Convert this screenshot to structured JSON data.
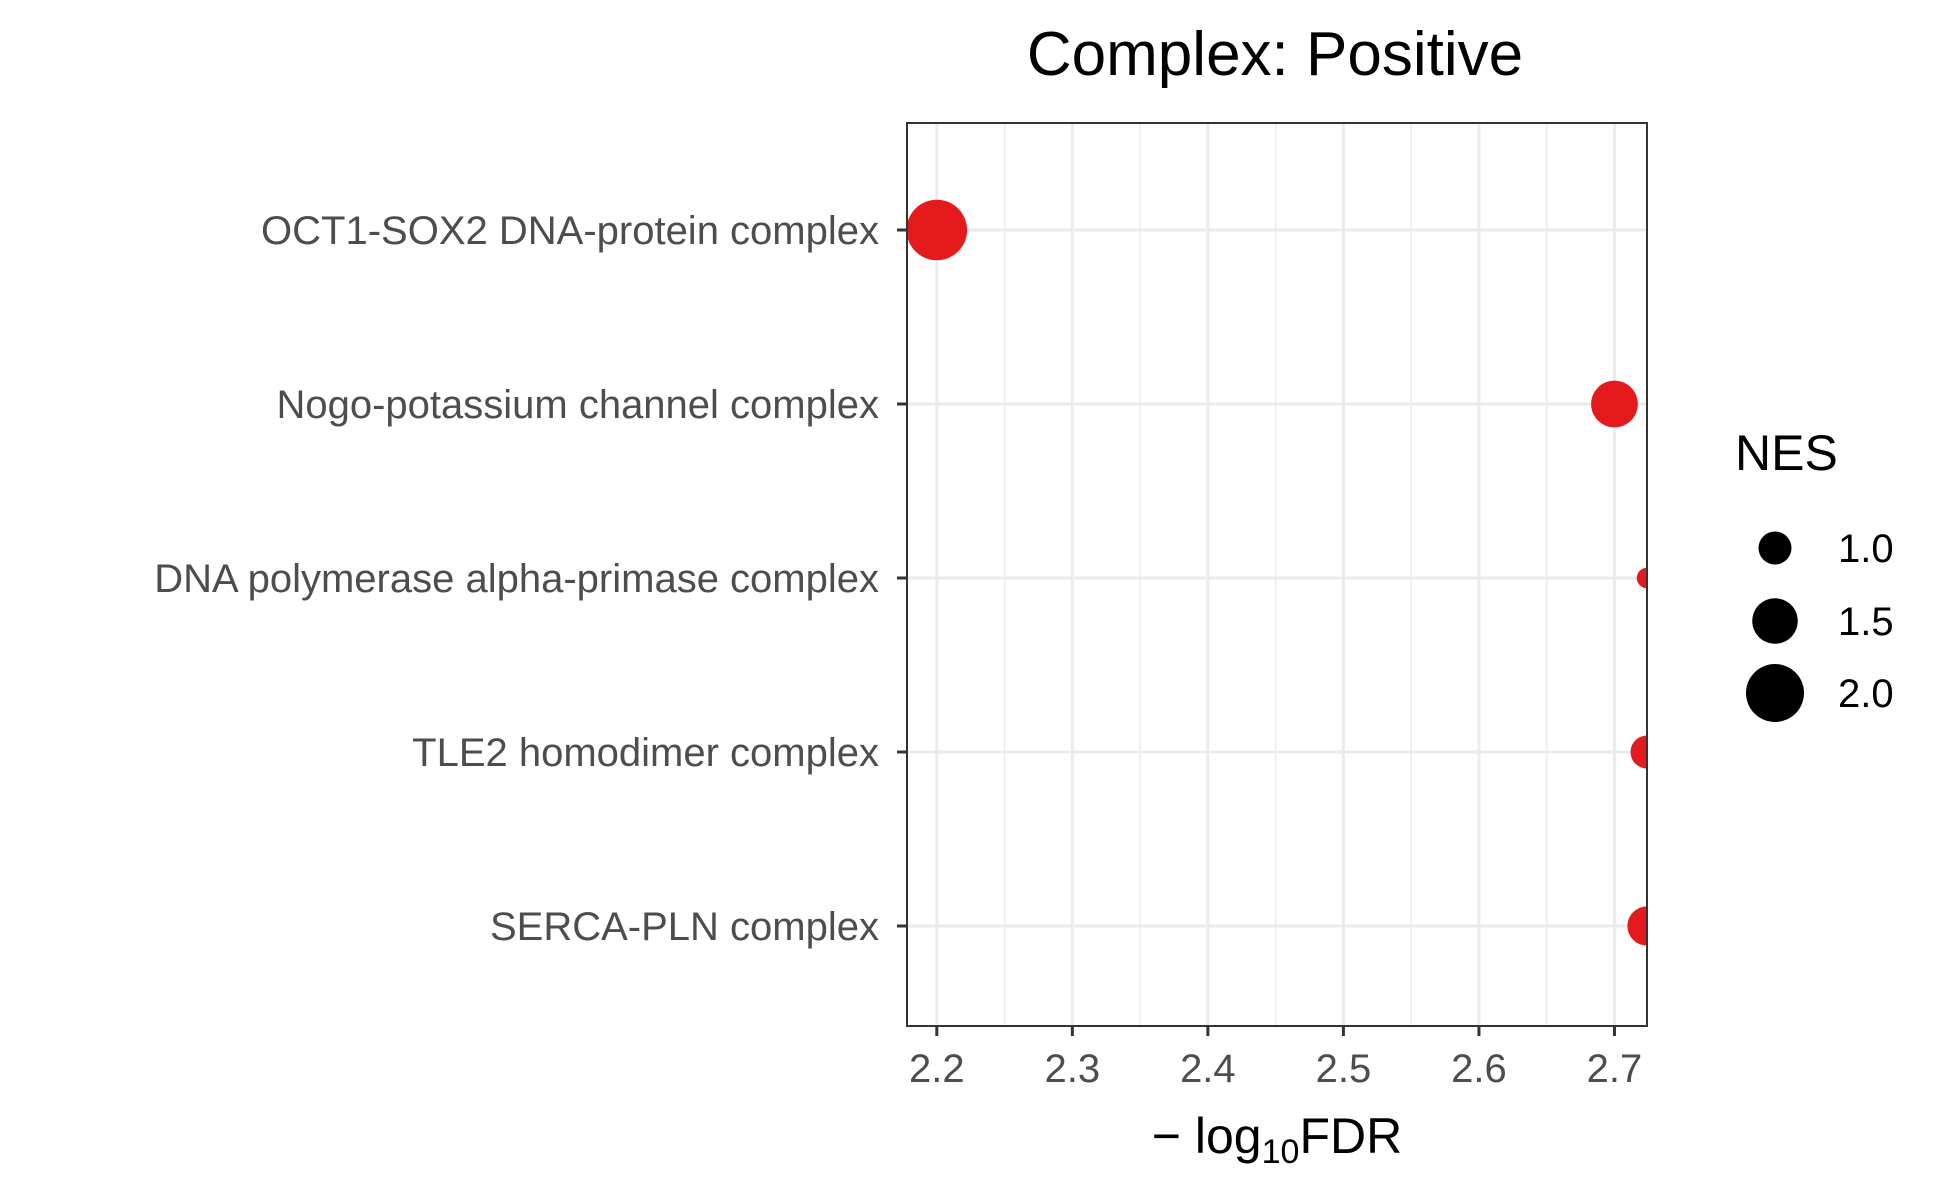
{
  "chart_data": {
    "type": "scatter",
    "title": "Complex: Positive",
    "xlabel": "−log10FDR",
    "xlabel_parts": {
      "prefix": "− log",
      "subscript": "10",
      "suffix": "FDR"
    },
    "ylabel": "",
    "xlim": [
      2.178,
      2.724
    ],
    "x_ticks": [
      "2.2",
      "2.3",
      "2.4",
      "2.5",
      "2.6",
      "2.7"
    ],
    "x_tick_values": [
      2.2,
      2.3,
      2.4,
      2.5,
      2.6,
      2.7
    ],
    "categories": [
      "OCT1-SOX2 DNA-protein complex",
      "Nogo-potassium channel complex",
      "DNA polymerase alpha-primase complex",
      "TLE2 homodimer complex",
      "SERCA-PLN complex"
    ],
    "points": [
      {
        "label": "OCT1-SOX2 DNA-protein complex",
        "x": 2.2,
        "nes": 2.1
      },
      {
        "label": "Nogo-potassium channel complex",
        "x": 2.7,
        "nes": 1.55
      },
      {
        "label": "DNA polymerase alpha-primase complex",
        "x": 2.724,
        "nes": 0.5
      },
      {
        "label": "TLE2 homodimer complex",
        "x": 2.724,
        "nes": 1.0
      },
      {
        "label": "SERCA-PLN complex",
        "x": 2.724,
        "nes": 1.25
      }
    ],
    "point_color": "#E41A1C",
    "grid": true,
    "legend": {
      "title": "NES",
      "placement": "right",
      "entries": [
        {
          "label": "1.0",
          "value": 1.0
        },
        {
          "label": "1.5",
          "value": 1.5
        },
        {
          "label": "2.0",
          "value": 2.0
        }
      ]
    }
  }
}
